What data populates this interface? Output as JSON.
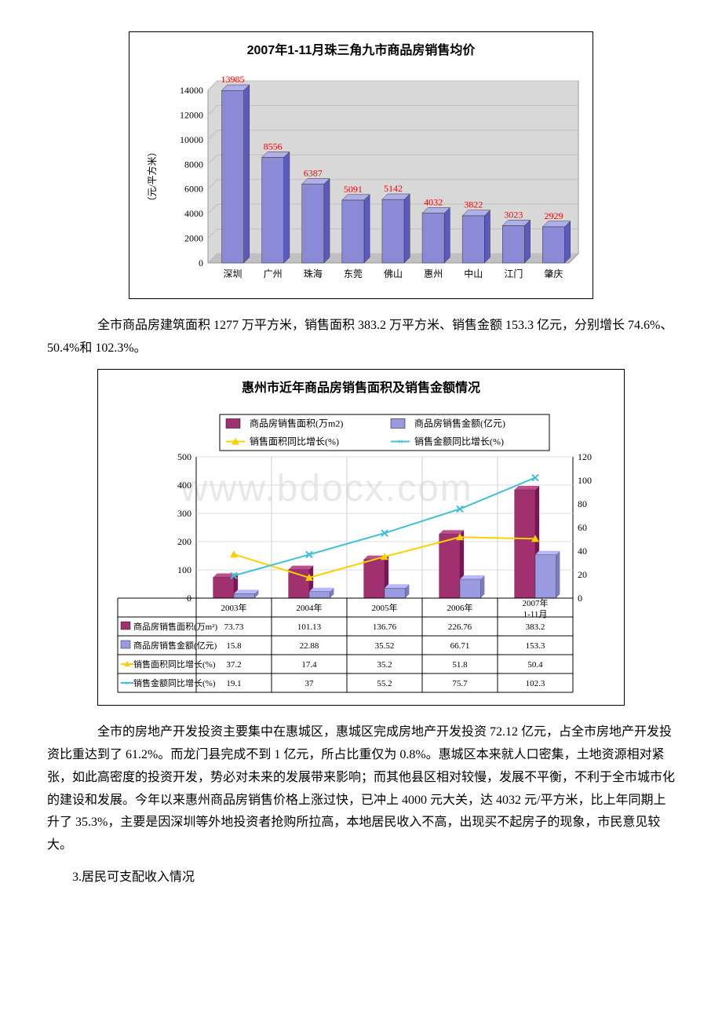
{
  "chart1": {
    "type": "bar-3d",
    "title": "2007年1-11月珠三角九市商品房销售均价",
    "ylabel": "（元/平方米）",
    "categories": [
      "深圳",
      "广州",
      "珠海",
      "东莞",
      "佛山",
      "惠州",
      "中山",
      "江门",
      "肇庆"
    ],
    "values": [
      13985,
      8556,
      6387,
      5091,
      5142,
      4032,
      3822,
      3023,
      2929
    ],
    "ylim": [
      0,
      14000
    ],
    "ytick_step": 2000,
    "bar_fill": "#8a8ad6",
    "bar_side": "#5a5ac0",
    "bar_top": "#b0b0e8",
    "label_color": "#ff0000",
    "axis_color": "#000000",
    "grid_color": "#c0c0c0",
    "floor_color": "#c0c0c0",
    "back_color": "#d8d8d8",
    "label_fontsize": 12,
    "tick_fontsize": 12
  },
  "para1": "　　全市商品房建筑面积 1277 万平方米，销售面积 383.2 万平方米、销售金额 153.3 亿元，分别增长 74.6%、50.4%和 102.3%。",
  "chart2": {
    "type": "bar-line-combo",
    "title": "惠州市近年商品房销售面积及销售金额情况",
    "watermark": "www.bdocx.com",
    "legend": [
      {
        "label": "商品房销售面积(万m2)",
        "color": "#a03070",
        "kind": "bar"
      },
      {
        "label": "商品房销售金额(亿元)",
        "color": "#9a9ae0",
        "kind": "bar"
      },
      {
        "label": "销售面积同比增长(%)",
        "color": "#ffd000",
        "kind": "line",
        "marker": "triangle"
      },
      {
        "label": "销售金额同比增长(%)",
        "color": "#40c0d8",
        "kind": "line",
        "marker": "x"
      }
    ],
    "categories": [
      "2003年",
      "2004年",
      "2005年",
      "2006年",
      "2007年1-11月"
    ],
    "series": {
      "area": [
        73.73,
        101.13,
        136.76,
        226.76,
        383.2
      ],
      "amount": [
        15.8,
        22.88,
        35.52,
        66.71,
        153.3
      ],
      "area_growth": [
        37.2,
        17.4,
        35.2,
        51.8,
        50.4
      ],
      "amount_growth": [
        19.1,
        37,
        55.2,
        75.7,
        102.3
      ]
    },
    "y1": {
      "lim": [
        0,
        500
      ],
      "tick_step": 100
    },
    "y2": {
      "lim": [
        0,
        120
      ],
      "tick_step": 20
    },
    "bar1_color": "#a03070",
    "bar2_color": "#9a9ae0",
    "line1_color": "#ffd000",
    "line2_color": "#40c0d8",
    "grid_color": "#808080",
    "table_header_labels": [
      "商品房销售面积(万m2)",
      "商品房销售金额(亿元)",
      "销售面积同比增长(%)",
      "销售金额同比增长(%)"
    ],
    "table_font": 12
  },
  "para2": "　　全市的房地产开发投资主要集中在惠城区，惠城区完成房地产开发投资 72.12 亿元，占全市房地产开发投资比重达到了 61.2%。而龙门县完成不到 1 亿元，所占比重仅为 0.8%。惠城区本来就人口密集，土地资源相对紧张，如此高密度的投资开发，势必对未来的发展带来影响；而其他县区相对较慢，发展不平衡，不利于全市城市化的建设和发展。今年以来惠州商品房销售价格上涨过快，已冲上 4000 元大关，达 4032 元/平方米，比上年同期上升了 35.3%，主要是因深圳等外地投资者抢购所拉高，本地居民收入不高，出现买不起房子的现象，市民意见较大。",
  "section3": "3.居民可支配收入情况"
}
